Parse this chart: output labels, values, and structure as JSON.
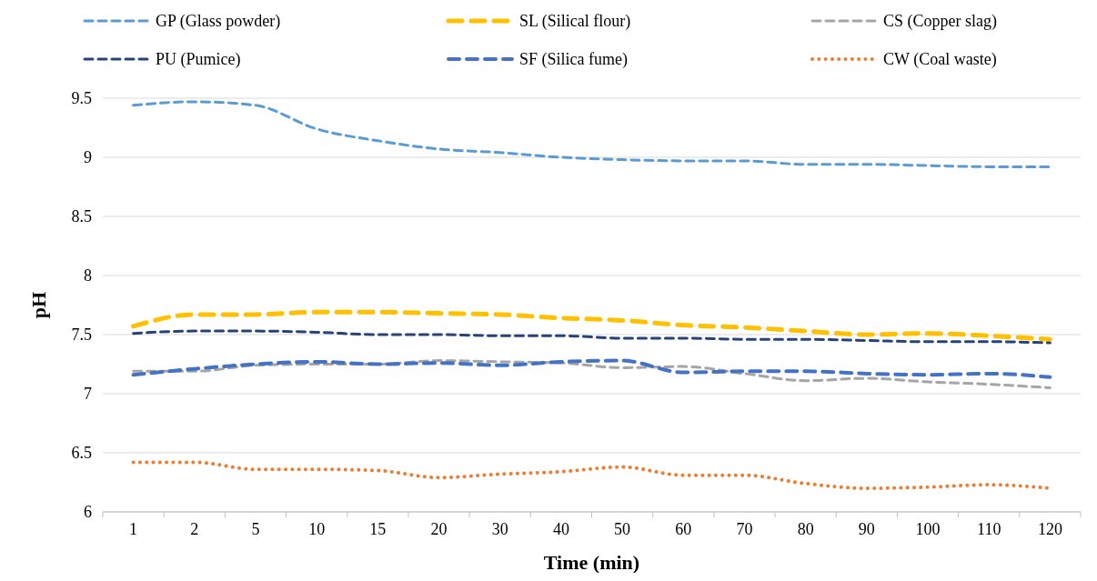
{
  "chart_data": {
    "type": "line",
    "xlabel": "Time (min)",
    "ylabel": "pH",
    "categories": [
      "1",
      "2",
      "5",
      "10",
      "15",
      "20",
      "30",
      "40",
      "50",
      "60",
      "70",
      "80",
      "90",
      "100",
      "110",
      "120"
    ],
    "ylim": [
      6,
      9.5
    ],
    "yticks": [
      6,
      6.5,
      7,
      7.5,
      8,
      8.5,
      9,
      9.5
    ],
    "grid": "y",
    "legend": "top",
    "series": [
      {
        "name": "GP (Glass powder)",
        "color": "#5b9bd5",
        "line_style": "dashed",
        "values": [
          9.44,
          9.47,
          9.44,
          9.24,
          9.14,
          9.07,
          9.04,
          9.0,
          8.98,
          8.97,
          8.97,
          8.94,
          8.94,
          8.93,
          8.92,
          8.92
        ]
      },
      {
        "name": "SL (Silical flour)",
        "color": "#ffc000",
        "line_style": "dashed",
        "values": [
          7.57,
          7.67,
          7.67,
          7.69,
          7.69,
          7.68,
          7.67,
          7.64,
          7.62,
          7.58,
          7.56,
          7.53,
          7.5,
          7.51,
          7.49,
          7.46
        ]
      },
      {
        "name": "CS (Copper slag)",
        "color": "#a5a5a5",
        "line_style": "dashed",
        "values": [
          7.19,
          7.19,
          7.24,
          7.25,
          7.25,
          7.28,
          7.27,
          7.26,
          7.22,
          7.23,
          7.17,
          7.11,
          7.13,
          7.1,
          7.08,
          7.05
        ]
      },
      {
        "name": "PU (Pumice)",
        "color": "#264478",
        "line_style": "dashed",
        "values": [
          7.51,
          7.53,
          7.53,
          7.52,
          7.5,
          7.5,
          7.49,
          7.49,
          7.47,
          7.47,
          7.46,
          7.46,
          7.45,
          7.44,
          7.44,
          7.43
        ]
      },
      {
        "name": "SF (Silica fume)",
        "color": "#4472c4",
        "line_style": "dashed",
        "values": [
          7.16,
          7.21,
          7.25,
          7.27,
          7.25,
          7.26,
          7.24,
          7.27,
          7.28,
          7.18,
          7.19,
          7.19,
          7.17,
          7.16,
          7.17,
          7.14
        ]
      },
      {
        "name": "CW (Coal waste)",
        "color": "#ed7d31",
        "line_style": "dotted",
        "values": [
          6.42,
          6.42,
          6.36,
          6.36,
          6.35,
          6.29,
          6.32,
          6.34,
          6.38,
          6.31,
          6.31,
          6.24,
          6.2,
          6.21,
          6.23,
          6.2
        ]
      }
    ]
  }
}
